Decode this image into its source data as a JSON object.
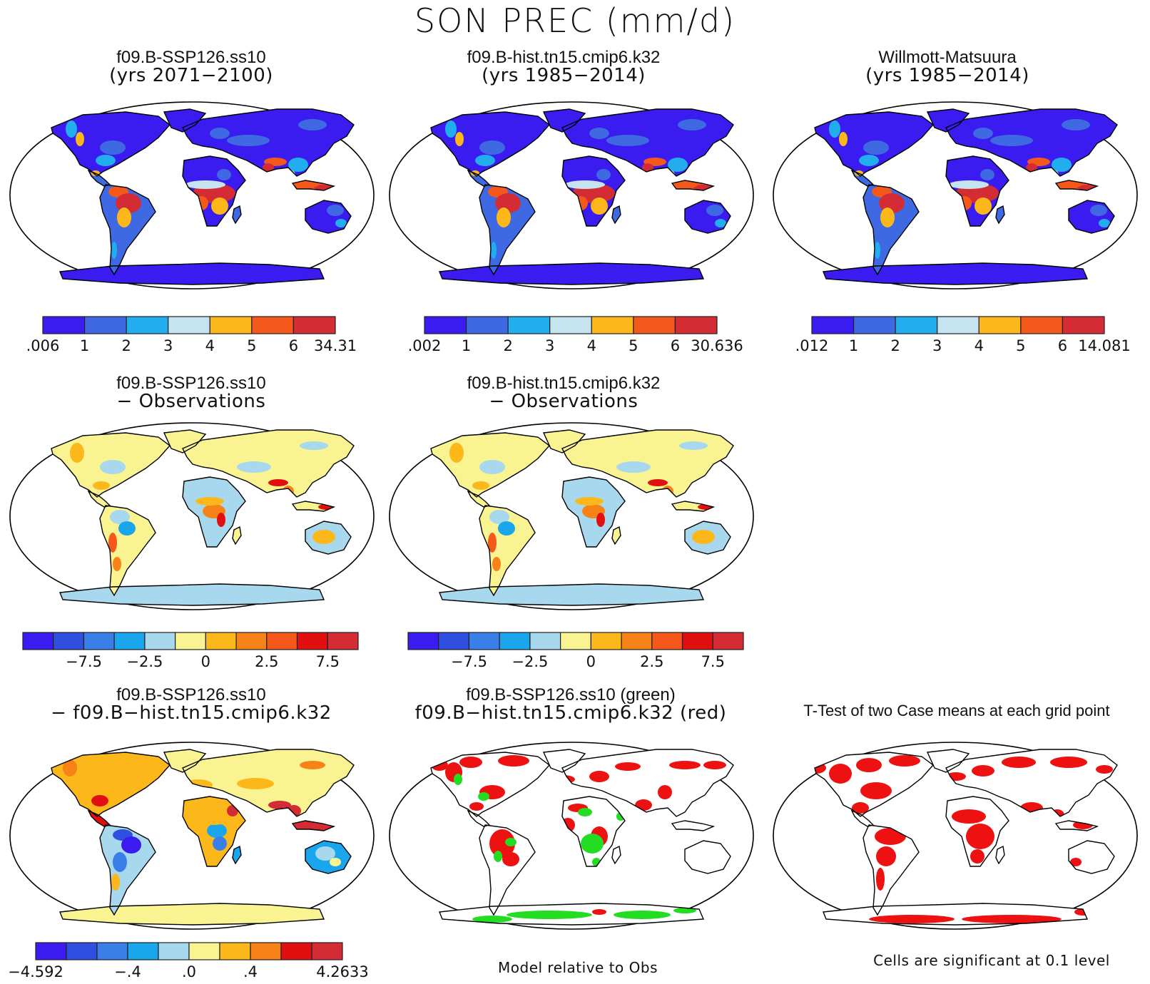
{
  "main_title": "SON PREC (mm/d)",
  "palettes": {
    "abs": [
      "#3a1cf0",
      "#3f69e3",
      "#22aeee",
      "#c6e3f0",
      "#fcb71b",
      "#f4581a",
      "#d42c35"
    ],
    "diff": [
      "#3a1cf0",
      "#2f4fe0",
      "#3a7fe8",
      "#1aa6ec",
      "#a8d8ee",
      "#faf391",
      "#fcb71b",
      "#f78217",
      "#f4581a",
      "#e20f10",
      "#d42c35"
    ],
    "bias": [
      "#3a1cf0",
      "#2f4fe0",
      "#3a7fe8",
      "#1aa6ec",
      "#a8d8ee",
      "#faf391",
      "#fcb71b",
      "#f78217",
      "#e20f10",
      "#d42c35"
    ],
    "land_outline": "#000000",
    "significant_red": "#ee1111",
    "significant_green": "#22dd22"
  },
  "panels": [
    {
      "line1": "f09.B-SSP126.ss10",
      "line2": "(yrs 2071−2100)",
      "map": "abs",
      "colorbar": {
        "palette": "abs",
        "labels": [
          ".006",
          "1",
          "2",
          "3",
          "4",
          "5",
          "6",
          "34.31"
        ]
      }
    },
    {
      "line1": "f09.B-hist.tn15.cmip6.k32",
      "line2": "(yrs 1985−2014)",
      "map": "abs",
      "colorbar": {
        "palette": "abs",
        "labels": [
          ".002",
          "1",
          "2",
          "3",
          "4",
          "5",
          "6",
          "30.636"
        ]
      }
    },
    {
      "line1": "Willmott-Matsuura",
      "line2": "(yrs 1985−2014)",
      "map": "abs",
      "colorbar": {
        "palette": "abs",
        "labels": [
          ".012",
          "1",
          "2",
          "3",
          "4",
          "5",
          "6",
          "14.081"
        ]
      }
    },
    {
      "line1": "f09.B-SSP126.ss10",
      "line2": "− Observations",
      "map": "bias",
      "colorbar": {
        "palette": "diff",
        "labels": [
          "−7.5",
          "−2.5",
          "0",
          "2.5",
          "7.5"
        ]
      }
    },
    {
      "line1": "f09.B-hist.tn15.cmip6.k32",
      "line2": "− Observations",
      "map": "bias",
      "colorbar": {
        "palette": "diff",
        "labels": [
          "−7.5",
          "−2.5",
          "0",
          "2.5",
          "7.5"
        ]
      }
    },
    {
      "line1": "f09.B-SSP126.ss10",
      "line2": "− f09.B−hist.tn15.cmip6.k32",
      "map": "diff",
      "colorbar": {
        "palette": "bias",
        "labels": [
          "−4.592",
          "−.4",
          ".0",
          ".4",
          "4.2633"
        ]
      }
    },
    {
      "line1": "f09.B-SSP126.ss10 (green)",
      "line2": "f09.B−hist.tn15.cmip6.k32 (red)",
      "map": "compare"
    },
    {
      "line1": "T-Test of two Case means at each grid point",
      "line2": "",
      "map": "ttest"
    }
  ],
  "footnotes": {
    "model_relative": "Model relative to Obs",
    "significance": "Cells are significant at 0.1 level"
  }
}
